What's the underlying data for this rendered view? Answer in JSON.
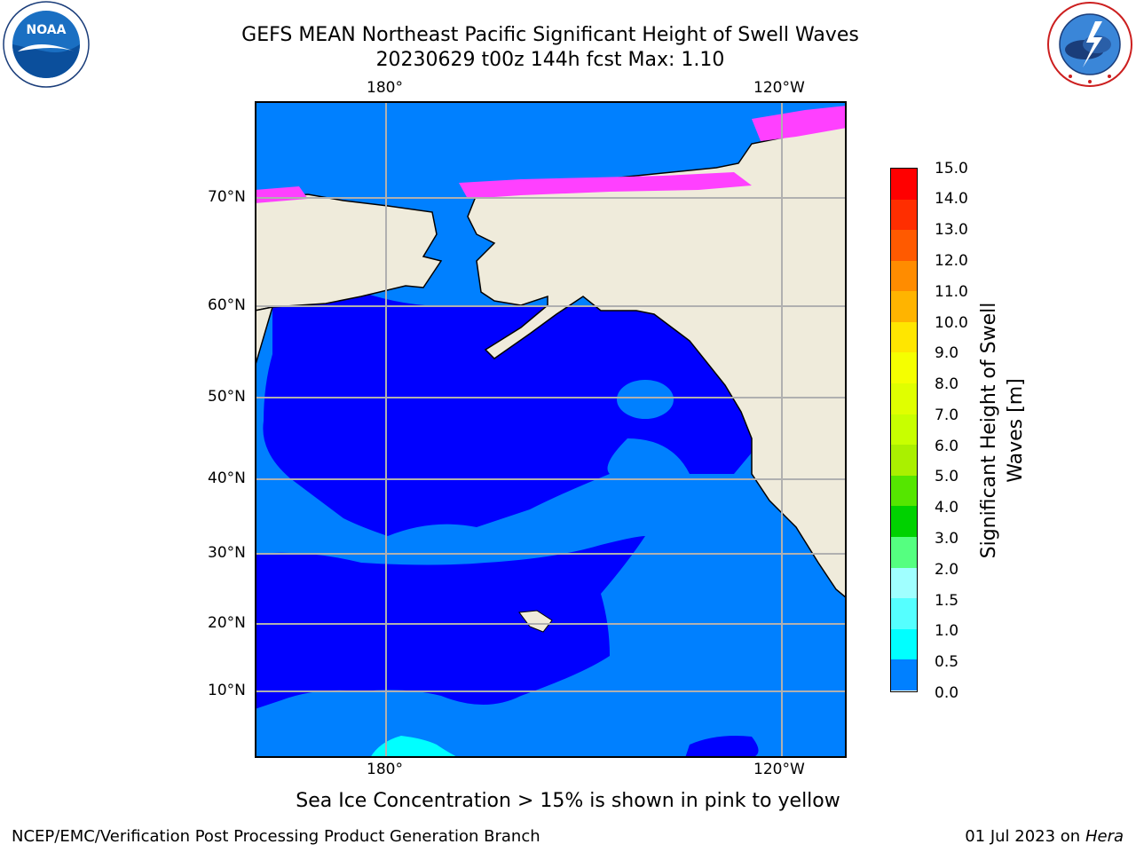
{
  "header": {
    "title_line1": "GEFS MEAN Northeast Pacific Significant Height of Swell Waves",
    "title_line2": "20230629 t00z 144h fcst   Max: 1.10"
  },
  "logos": {
    "left": {
      "name": "NOAA",
      "ring_text": "NATIONAL OCEANIC AND ATMOSPHERIC ADMINISTRATION",
      "bottom_text": "U.S. DEPARTMENT OF COMMERCE"
    },
    "right": {
      "name": "National Weather Service",
      "ring_text": "NATIONAL WEATHER SERVICE"
    }
  },
  "map": {
    "lon_labels_top": [
      "180°",
      "120°W"
    ],
    "lon_labels_bottom": [
      "180°",
      "120°W"
    ],
    "lat_labels": [
      "70°N",
      "60°N",
      "50°N",
      "40°N",
      "30°N",
      "20°N",
      "10°N"
    ],
    "colors": {
      "land": "#efebdb",
      "low_swell": "#0000ff",
      "mid_swell": "#0080ff",
      "high_swell": "#00ffff",
      "ice": "#ff40ff"
    }
  },
  "colorbar": {
    "title_line1": "Significant Height of Swell",
    "title_line2": "Waves [m]",
    "ticks": [
      "15.0",
      "14.0",
      "13.0",
      "12.0",
      "11.0",
      "10.0",
      "9.0",
      "8.0",
      "7.0",
      "6.0",
      "5.0",
      "4.0",
      "3.0",
      "2.0",
      "1.5",
      "1.0",
      "0.5",
      "0.0"
    ],
    "colors": [
      "#ff0000",
      "#ff2e00",
      "#ff5a00",
      "#ff8c00",
      "#ffb400",
      "#ffe600",
      "#f5ff00",
      "#e0ff00",
      "#c8ff00",
      "#aaf000",
      "#55e600",
      "#00d200",
      "#55ff80",
      "#a0ffff",
      "#55ffff",
      "#00ffff",
      "#0080ff",
      "#0000ff"
    ]
  },
  "caption": "Sea Ice Concentration > 15% is shown in pink to yellow",
  "footer": {
    "left": "NCEP/EMC/Verification Post Processing Product Generation Branch",
    "right_prefix": "01 Jul 2023 on ",
    "right_machine": "Hera"
  }
}
